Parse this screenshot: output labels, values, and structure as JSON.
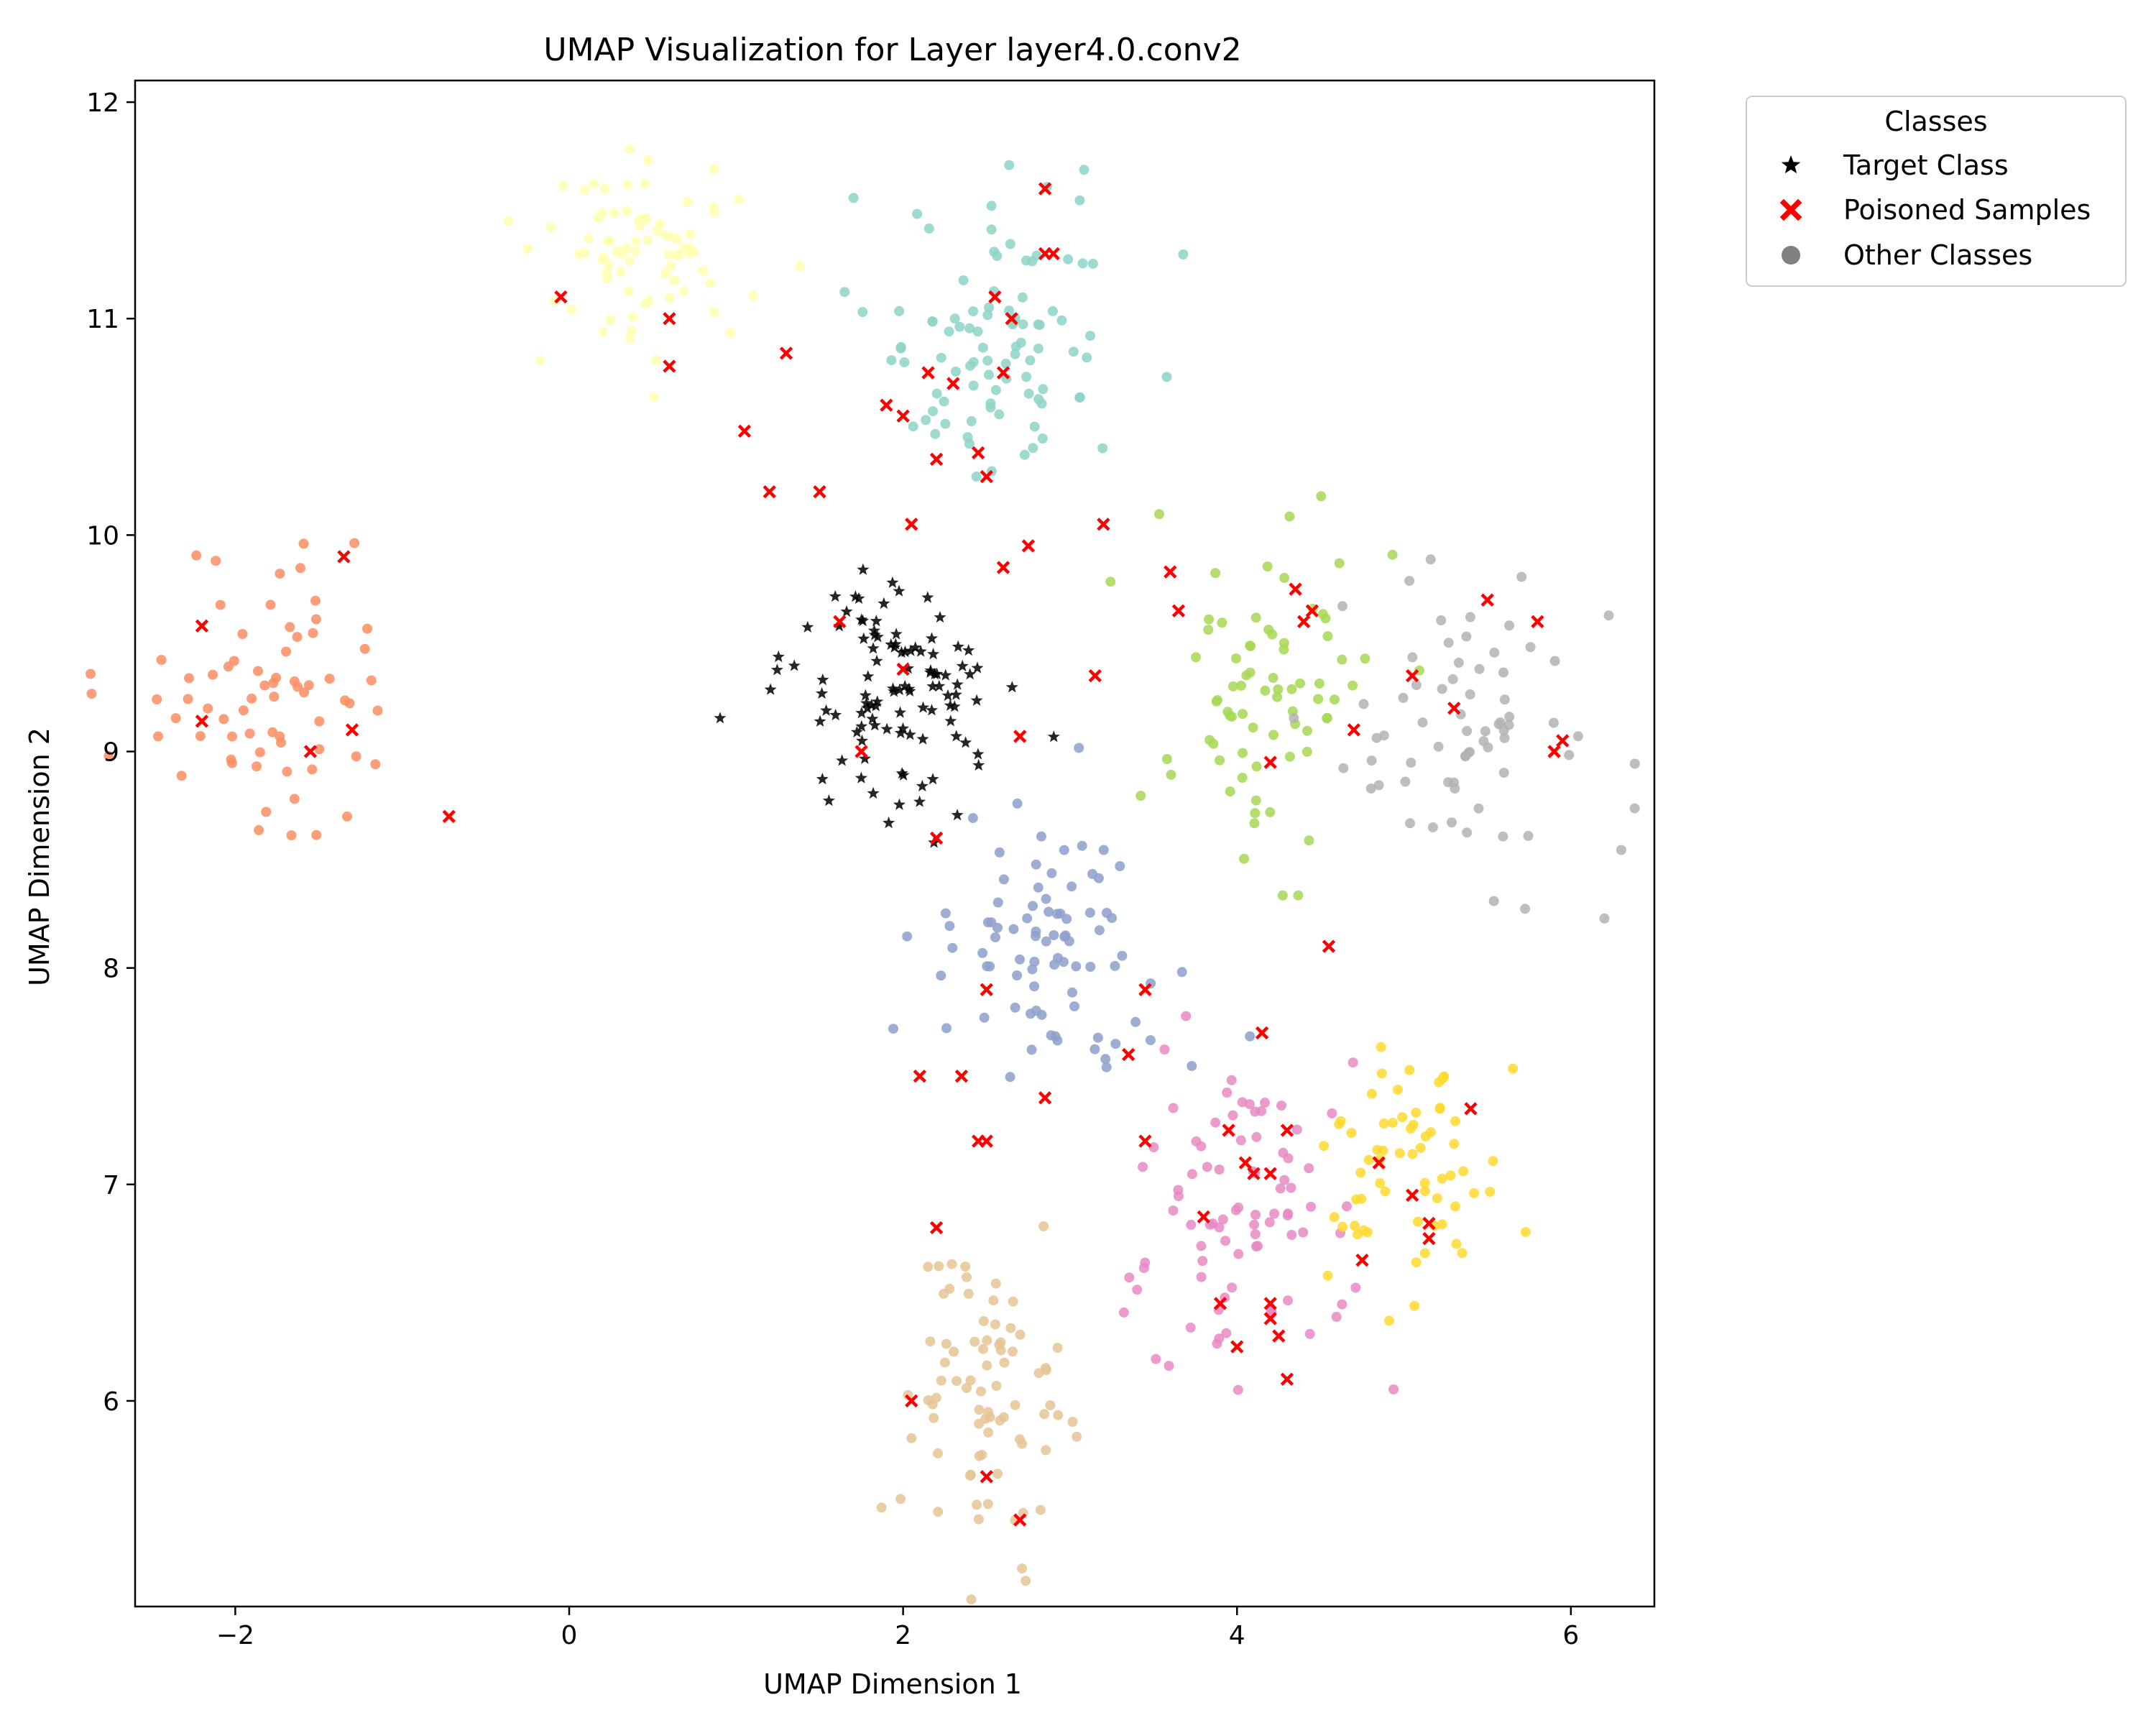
{
  "chart_data": {
    "type": "scatter",
    "title": "UMAP Visualization for Layer layer4.0.conv2",
    "xlabel": "UMAP Dimension 1",
    "ylabel": "UMAP Dimension 2",
    "xlim": [
      -2.6,
      6.5
    ],
    "ylim": [
      5.05,
      12.1
    ],
    "xticks": [
      -2,
      0,
      2,
      4,
      6
    ],
    "yticks": [
      6,
      7,
      8,
      9,
      10,
      11,
      12
    ],
    "xtick_labels": [
      "−2",
      "0",
      "2",
      "4",
      "6"
    ],
    "ytick_labels": [
      "6",
      "7",
      "8",
      "9",
      "10",
      "11",
      "12"
    ],
    "grid": false,
    "legend": {
      "title": "Classes",
      "placement": "outside-top-right",
      "entries": [
        {
          "label": "Target Class",
          "marker": "star",
          "color": "#000000"
        },
        {
          "label": "Poisoned Samples",
          "marker": "x",
          "color": "#ff0000"
        },
        {
          "label": "Other Classes",
          "marker": "circle",
          "color": "#808080"
        }
      ]
    },
    "clusters": [
      {
        "name": "salmon",
        "color": "#fc8d62",
        "center": [
          -1.75,
          9.3
        ],
        "spread": [
          0.38,
          0.3
        ],
        "n": 70
      },
      {
        "name": "light-yellow",
        "color": "#ffffb3",
        "center": [
          0.45,
          11.3
        ],
        "spread": [
          0.34,
          0.25
        ],
        "n": 80
      },
      {
        "name": "teal",
        "color": "#8dd3c7",
        "center": [
          2.5,
          10.9
        ],
        "spread": [
          0.38,
          0.32
        ],
        "n": 95
      },
      {
        "name": "lime",
        "color": "#a6d854",
        "center": [
          4.15,
          9.25
        ],
        "spread": [
          0.35,
          0.38
        ],
        "n": 75
      },
      {
        "name": "gray",
        "color": "#b3b3b3",
        "center": [
          5.3,
          9.1
        ],
        "spread": [
          0.45,
          0.35
        ],
        "n": 70
      },
      {
        "name": "blue-gray",
        "color": "#8da0cb",
        "center": [
          2.85,
          8.05
        ],
        "spread": [
          0.35,
          0.3
        ],
        "n": 85
      },
      {
        "name": "pink",
        "color": "#e78ac3",
        "center": [
          4.05,
          6.85
        ],
        "spread": [
          0.32,
          0.38
        ],
        "n": 85
      },
      {
        "name": "gold",
        "color": "#ffd92f",
        "center": [
          5.05,
          7.1
        ],
        "spread": [
          0.3,
          0.25
        ],
        "n": 65
      },
      {
        "name": "tan",
        "color": "#e5c494",
        "center": [
          2.5,
          6.0
        ],
        "spread": [
          0.25,
          0.35
        ],
        "n": 80
      }
    ],
    "target_class": {
      "name": "Target Class",
      "color": "#000000",
      "center": [
        1.95,
        9.25
      ],
      "spread": [
        0.32,
        0.25
      ],
      "n": 110
    },
    "poisoned_samples": {
      "name": "Poisoned Samples",
      "color": "#ff0000",
      "points": [
        [
          -2.2,
          9.58
        ],
        [
          -2.2,
          9.14
        ],
        [
          -1.35,
          9.9
        ],
        [
          -1.55,
          9.0
        ],
        [
          -1.3,
          9.1
        ],
        [
          -0.72,
          8.7
        ],
        [
          -0.05,
          11.1
        ],
        [
          0.6,
          11.0
        ],
        [
          0.6,
          10.78
        ],
        [
          1.05,
          10.48
        ],
        [
          1.3,
          10.84
        ],
        [
          1.2,
          10.2
        ],
        [
          1.5,
          10.2
        ],
        [
          1.62,
          9.6
        ],
        [
          1.75,
          9.0
        ],
        [
          2.0,
          9.38
        ],
        [
          2.05,
          10.05
        ],
        [
          2.0,
          10.55
        ],
        [
          1.9,
          10.6
        ],
        [
          2.15,
          10.75
        ],
        [
          2.2,
          10.35
        ],
        [
          2.3,
          10.7
        ],
        [
          2.5,
          10.27
        ],
        [
          2.45,
          10.38
        ],
        [
          2.6,
          10.75
        ],
        [
          2.55,
          11.1
        ],
        [
          2.65,
          11.0
        ],
        [
          2.85,
          11.3
        ],
        [
          2.9,
          11.3
        ],
        [
          2.85,
          11.6
        ],
        [
          2.6,
          9.85
        ],
        [
          2.75,
          9.95
        ],
        [
          3.2,
          10.05
        ],
        [
          2.7,
          9.07
        ],
        [
          3.15,
          9.35
        ],
        [
          3.6,
          9.83
        ],
        [
          3.65,
          9.65
        ],
        [
          2.2,
          8.6
        ],
        [
          2.5,
          7.9
        ],
        [
          2.1,
          7.5
        ],
        [
          2.35,
          7.5
        ],
        [
          2.45,
          7.2
        ],
        [
          2.5,
          7.2
        ],
        [
          2.85,
          7.4
        ],
        [
          3.35,
          7.6
        ],
        [
          3.45,
          7.9
        ],
        [
          3.45,
          7.2
        ],
        [
          3.8,
          6.85
        ],
        [
          3.9,
          6.45
        ],
        [
          4.0,
          6.25
        ],
        [
          4.05,
          7.1
        ],
        [
          4.1,
          7.05
        ],
        [
          4.15,
          7.7
        ],
        [
          4.2,
          7.05
        ],
        [
          4.3,
          7.25
        ],
        [
          4.2,
          6.45
        ],
        [
          4.2,
          6.38
        ],
        [
          4.25,
          6.3
        ],
        [
          4.3,
          6.1
        ],
        [
          3.95,
          7.25
        ],
        [
          4.55,
          8.1
        ],
        [
          4.7,
          9.1
        ],
        [
          4.75,
          6.65
        ],
        [
          4.2,
          8.95
        ],
        [
          4.35,
          9.75
        ],
        [
          4.4,
          9.6
        ],
        [
          4.45,
          9.65
        ],
        [
          4.85,
          7.1
        ],
        [
          5.05,
          6.95
        ],
        [
          5.15,
          6.75
        ],
        [
          5.15,
          6.82
        ],
        [
          5.4,
          7.35
        ],
        [
          5.05,
          9.35
        ],
        [
          5.3,
          9.2
        ],
        [
          5.5,
          9.7
        ],
        [
          5.8,
          9.6
        ],
        [
          5.95,
          9.05
        ],
        [
          5.9,
          9.0
        ],
        [
          2.2,
          6.8
        ],
        [
          2.5,
          5.65
        ],
        [
          2.7,
          5.45
        ],
        [
          2.05,
          6.0
        ]
      ]
    }
  }
}
